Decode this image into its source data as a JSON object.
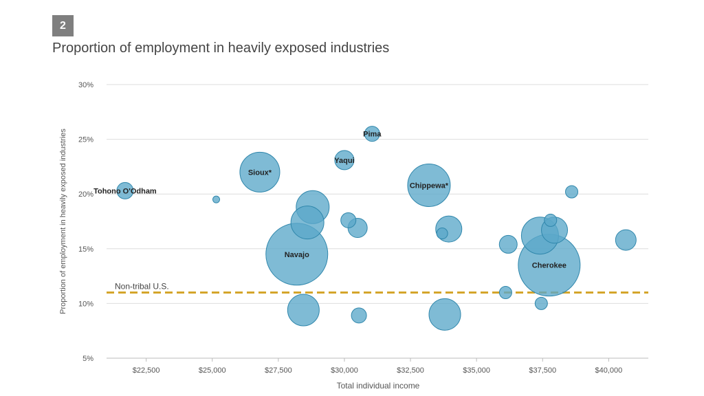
{
  "figure": {
    "number": "2",
    "title": "Proportion of employment in heavily exposed industries"
  },
  "chart_data": {
    "type": "scatter",
    "bubble": true,
    "title": "Proportion of employment in heavily exposed industries",
    "xlabel": "Total individual income",
    "ylabel": "Proportion of employment in heavily exposed industries",
    "xlim": [
      21000,
      41500
    ],
    "ylim": [
      5,
      30
    ],
    "x_ticks": [
      22500,
      25000,
      27500,
      30000,
      32500,
      35000,
      37500,
      40000
    ],
    "x_tick_labels": [
      "$22,500",
      "$25,000",
      "$27,500",
      "$30,000",
      "$32,500",
      "$35,000",
      "$37,500",
      "$40,000"
    ],
    "y_ticks": [
      5,
      10,
      15,
      20,
      25,
      30
    ],
    "y_tick_labels": [
      "5%",
      "10%",
      "15%",
      "20%",
      "25%",
      "30%"
    ],
    "grid": true,
    "reference_line": {
      "label": "Non-tribal U.S.",
      "y": 11,
      "color": "#d4a52a"
    },
    "bubble_color": "#5ba8c9",
    "bubble_stroke": "#2f86ab",
    "points": [
      {
        "label": "Tohono O'Odham",
        "x": 21700,
        "y": 20.3,
        "size": 12
      },
      {
        "label": "",
        "x": 25150,
        "y": 19.5,
        "size": 5
      },
      {
        "label": "Sioux*",
        "x": 26800,
        "y": 22.0,
        "size": 29
      },
      {
        "label": "Yaqui",
        "x": 30000,
        "y": 23.1,
        "size": 14
      },
      {
        "label": "Pima",
        "x": 31050,
        "y": 25.5,
        "size": 11
      },
      {
        "label": "Chippewa*",
        "x": 33200,
        "y": 20.8,
        "size": 31
      },
      {
        "label": "",
        "x": 28800,
        "y": 18.8,
        "size": 24
      },
      {
        "label": "",
        "x": 28600,
        "y": 17.4,
        "size": 24
      },
      {
        "label": "Navajo",
        "x": 28200,
        "y": 14.5,
        "size": 45
      },
      {
        "label": "",
        "x": 30150,
        "y": 17.6,
        "size": 11
      },
      {
        "label": "",
        "x": 30500,
        "y": 16.9,
        "size": 14
      },
      {
        "label": "",
        "x": 33950,
        "y": 16.8,
        "size": 19
      },
      {
        "label": "",
        "x": 33700,
        "y": 16.4,
        "size": 8
      },
      {
        "label": "",
        "x": 28450,
        "y": 9.4,
        "size": 23
      },
      {
        "label": "",
        "x": 30550,
        "y": 8.9,
        "size": 11
      },
      {
        "label": "",
        "x": 33800,
        "y": 9.0,
        "size": 23
      },
      {
        "label": "",
        "x": 36200,
        "y": 15.4,
        "size": 13
      },
      {
        "label": "",
        "x": 37400,
        "y": 16.2,
        "size": 27
      },
      {
        "label": "",
        "x": 37950,
        "y": 16.7,
        "size": 19
      },
      {
        "label": "",
        "x": 37800,
        "y": 17.6,
        "size": 9
      },
      {
        "label": "Cherokee",
        "x": 37750,
        "y": 13.5,
        "size": 45
      },
      {
        "label": "",
        "x": 36100,
        "y": 11.0,
        "size": 9
      },
      {
        "label": "",
        "x": 37450,
        "y": 10.0,
        "size": 9
      },
      {
        "label": "",
        "x": 38600,
        "y": 20.2,
        "size": 9
      },
      {
        "label": "",
        "x": 40650,
        "y": 15.8,
        "size": 15
      }
    ]
  }
}
